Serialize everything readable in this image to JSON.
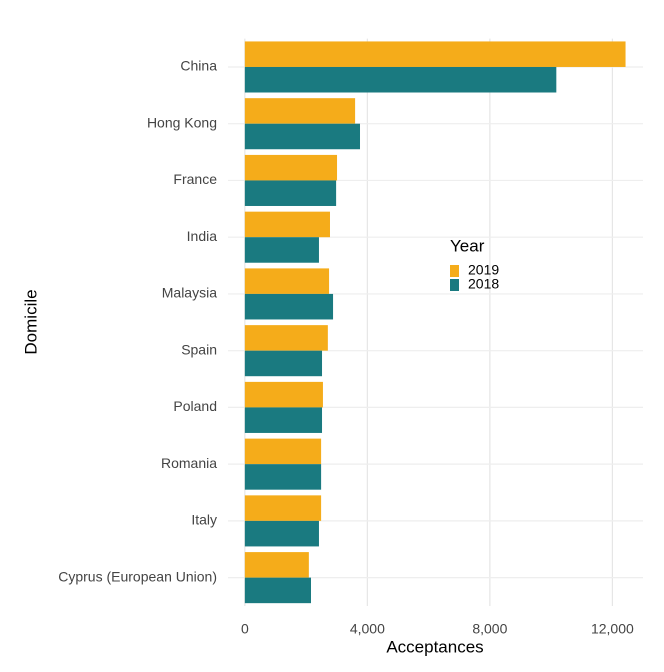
{
  "chart_data": {
    "type": "bar",
    "orientation": "horizontal",
    "x_label": "Acceptances",
    "y_label": "Domicile",
    "legend_title": "Year",
    "categories": [
      "China",
      "Hong Kong",
      "France",
      "India",
      "Malaysia",
      "Spain",
      "Poland",
      "Romania",
      "Italy",
      "Cyprus (European Union)"
    ],
    "series": [
      {
        "name": "2019",
        "color": "#f5ac1a",
        "values": [
          12430,
          3600,
          3010,
          2780,
          2750,
          2710,
          2550,
          2490,
          2490,
          2090
        ]
      },
      {
        "name": "2018",
        "color": "#1a7a80",
        "values": [
          10170,
          3760,
          2980,
          2420,
          2880,
          2520,
          2520,
          2490,
          2420,
          2160
        ]
      }
    ],
    "xlim": [
      -550,
      13000
    ],
    "xticks": [
      0,
      {
        "value": 4000,
        "label": "4,000"
      },
      {
        "value": 8000,
        "label": "8,000"
      },
      {
        "value": 12000,
        "label": "12,000"
      }
    ],
    "grid": true,
    "legend_position": "inside"
  }
}
